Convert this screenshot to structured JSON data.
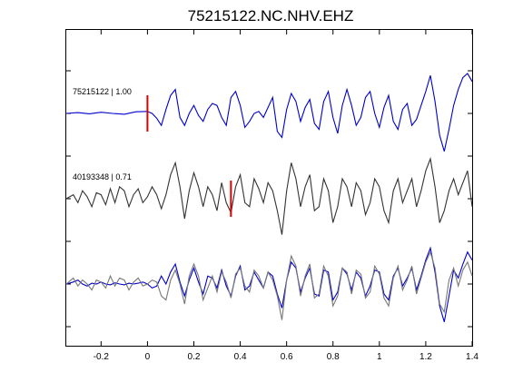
{
  "chart_data": {
    "type": "line",
    "title": "75215122.NC.NHV.EHZ",
    "xlabel": "",
    "ylabel": "",
    "xlim": [
      -0.35,
      1.4
    ],
    "xticks": [
      "-0.2",
      "0",
      "0.2",
      "0.4",
      "0.6",
      "0.8",
      "1",
      "1.2",
      "1.4"
    ],
    "xtick_values": [
      -0.2,
      0,
      0.2,
      0.4,
      0.6,
      0.8,
      1.0,
      1.2,
      1.4
    ],
    "grid": false,
    "colors": {
      "master": "#0000cc",
      "ref": "#333333",
      "overlay_ref": "#777777",
      "pick": "#dd0000"
    },
    "panels": [
      {
        "label": "75215122 | 1.00",
        "pick_time": 0.0,
        "color": "#0000cc",
        "series": [
          {
            "x": [
              -0.35,
              -0.3,
              -0.25,
              -0.2,
              -0.15,
              -0.1,
              -0.05,
              0.0,
              0.02,
              0.04,
              0.06,
              0.08,
              0.1,
              0.12,
              0.14,
              0.16,
              0.18,
              0.2,
              0.22,
              0.24,
              0.26,
              0.28,
              0.3,
              0.32,
              0.34,
              0.36,
              0.38,
              0.4,
              0.42,
              0.44,
              0.46,
              0.48,
              0.5,
              0.52,
              0.54,
              0.56,
              0.58,
              0.6,
              0.62,
              0.64,
              0.66,
              0.68,
              0.7,
              0.72,
              0.74,
              0.76,
              0.78,
              0.8,
              0.82,
              0.84,
              0.86,
              0.88,
              0.9,
              0.92,
              0.94,
              0.96,
              0.98,
              1.0,
              1.02,
              1.04,
              1.06,
              1.08,
              1.1,
              1.12,
              1.14,
              1.16,
              1.18,
              1.2,
              1.22,
              1.24,
              1.26,
              1.28,
              1.3,
              1.32,
              1.34,
              1.36,
              1.38,
              1.4
            ],
            "y": [
              0.0,
              0.02,
              -0.01,
              0.03,
              0.0,
              -0.02,
              0.04,
              0.05,
              0.0,
              -0.12,
              -0.3,
              0.1,
              0.45,
              0.6,
              -0.1,
              -0.3,
              0.0,
              0.2,
              -0.05,
              -0.2,
              0.1,
              0.25,
              0.2,
              -0.1,
              -0.3,
              0.4,
              0.55,
              0.2,
              -0.35,
              -0.2,
              0.0,
              0.05,
              -0.1,
              0.15,
              0.4,
              -0.45,
              -0.6,
              0.1,
              0.5,
              0.3,
              -0.2,
              0.15,
              0.35,
              -0.25,
              -0.4,
              0.3,
              0.55,
              -0.1,
              -0.5,
              0.2,
              0.6,
              0.2,
              -0.3,
              -0.1,
              0.4,
              0.55,
              0.0,
              -0.35,
              0.15,
              0.45,
              -0.2,
              -0.4,
              0.1,
              0.25,
              -0.3,
              -0.15,
              0.2,
              0.55,
              0.95,
              0.3,
              -0.55,
              -0.95,
              -0.4,
              0.2,
              0.6,
              0.9,
              1.0,
              0.8
            ]
          }
        ]
      },
      {
        "label": "40193348 | 0.71",
        "pick_time": 0.36,
        "color": "#333333",
        "series": [
          {
            "x": [
              -0.35,
              -0.32,
              -0.3,
              -0.28,
              -0.26,
              -0.24,
              -0.22,
              -0.2,
              -0.18,
              -0.16,
              -0.14,
              -0.12,
              -0.1,
              -0.08,
              -0.06,
              -0.04,
              -0.02,
              0.0,
              0.02,
              0.04,
              0.06,
              0.08,
              0.1,
              0.12,
              0.14,
              0.16,
              0.18,
              0.2,
              0.22,
              0.24,
              0.26,
              0.28,
              0.3,
              0.32,
              0.34,
              0.36,
              0.38,
              0.4,
              0.42,
              0.44,
              0.46,
              0.48,
              0.5,
              0.52,
              0.54,
              0.56,
              0.58,
              0.6,
              0.62,
              0.64,
              0.66,
              0.68,
              0.7,
              0.72,
              0.74,
              0.76,
              0.78,
              0.8,
              0.82,
              0.84,
              0.86,
              0.88,
              0.9,
              0.92,
              0.94,
              0.96,
              0.98,
              1.0,
              1.02,
              1.04,
              1.06,
              1.08,
              1.1,
              1.12,
              1.14,
              1.16,
              1.18,
              1.2,
              1.22,
              1.24,
              1.26,
              1.28,
              1.3,
              1.32,
              1.34,
              1.36,
              1.38,
              1.4
            ],
            "y": [
              0.0,
              0.1,
              -0.1,
              0.2,
              0.05,
              -0.2,
              0.15,
              0.1,
              -0.15,
              0.25,
              -0.1,
              0.3,
              0.2,
              -0.2,
              0.1,
              0.25,
              -0.1,
              0.05,
              0.3,
              0.1,
              -0.25,
              0.1,
              0.6,
              0.9,
              0.3,
              -0.5,
              0.2,
              0.65,
              0.3,
              -0.2,
              0.3,
              0.1,
              -0.3,
              0.4,
              -0.1,
              -0.35,
              0.3,
              0.6,
              -0.1,
              -0.2,
              0.5,
              0.25,
              -0.1,
              0.4,
              0.2,
              -0.3,
              -0.9,
              0.2,
              0.9,
              0.5,
              -0.2,
              0.3,
              0.6,
              -0.3,
              -0.2,
              0.5,
              0.2,
              -0.6,
              -0.2,
              0.5,
              0.3,
              -0.2,
              0.4,
              0.2,
              -0.4,
              -0.1,
              0.5,
              0.3,
              -0.3,
              -0.6,
              0.2,
              0.5,
              -0.1,
              0.2,
              0.5,
              -0.2,
              0.2,
              0.7,
              1.0,
              0.3,
              -0.6,
              -0.3,
              0.2,
              0.5,
              0.1,
              0.4,
              0.7,
              -0.2
            ]
          }
        ]
      },
      {
        "label": "",
        "pick_time": null,
        "color": "#0000cc",
        "overlay": true,
        "series": [
          {
            "x": [
              -0.35,
              -0.32,
              -0.3,
              -0.28,
              -0.26,
              -0.24,
              -0.22,
              -0.2,
              -0.18,
              -0.16,
              -0.14,
              -0.12,
              -0.1,
              -0.08,
              -0.06,
              -0.04,
              -0.02,
              0.0,
              0.02,
              0.04,
              0.06,
              0.08,
              0.1,
              0.12,
              0.14,
              0.16,
              0.18,
              0.2,
              0.22,
              0.24,
              0.26,
              0.28,
              0.3,
              0.32,
              0.34,
              0.36,
              0.38,
              0.4,
              0.42,
              0.44,
              0.46,
              0.48,
              0.5,
              0.52,
              0.54,
              0.56,
              0.58,
              0.6,
              0.62,
              0.64,
              0.66,
              0.68,
              0.7,
              0.72,
              0.74,
              0.76,
              0.78,
              0.8,
              0.82,
              0.84,
              0.86,
              0.88,
              0.9,
              0.92,
              0.94,
              0.96,
              0.98,
              1.0,
              1.02,
              1.04,
              1.06,
              1.08,
              1.1,
              1.12,
              1.14,
              1.16,
              1.18,
              1.2,
              1.22,
              1.24,
              1.26,
              1.28,
              1.3,
              1.32,
              1.34,
              1.36,
              1.38,
              1.4
            ],
            "y": [
              0.0,
              0.05,
              0.1,
              0.0,
              -0.05,
              0.02,
              0.0,
              0.05,
              0.0,
              -0.02,
              0.03,
              0.0,
              -0.02,
              0.02,
              0.0,
              0.02,
              0.05,
              0.0,
              -0.1,
              -0.05,
              0.2,
              0.0,
              0.3,
              0.5,
              0.05,
              -0.3,
              0.1,
              0.4,
              0.05,
              -0.25,
              0.2,
              0.15,
              -0.1,
              0.35,
              -0.05,
              -0.3,
              0.2,
              0.45,
              -0.15,
              -0.05,
              0.3,
              0.1,
              -0.1,
              0.3,
              0.2,
              -0.25,
              -0.6,
              0.1,
              0.55,
              0.4,
              -0.2,
              0.15,
              0.4,
              -0.25,
              -0.3,
              0.35,
              0.3,
              -0.4,
              -0.2,
              0.4,
              0.25,
              -0.15,
              0.3,
              0.15,
              -0.3,
              -0.05,
              0.35,
              0.3,
              -0.25,
              -0.4,
              0.2,
              0.4,
              -0.05,
              0.15,
              0.4,
              -0.15,
              0.2,
              0.6,
              0.9,
              0.3,
              -0.55,
              -0.95,
              -0.3,
              0.35,
              0.15,
              0.5,
              0.8,
              0.6
            ]
          },
          {
            "x": [
              -0.35,
              -0.32,
              -0.3,
              -0.28,
              -0.26,
              -0.24,
              -0.22,
              -0.2,
              -0.18,
              -0.16,
              -0.14,
              -0.12,
              -0.1,
              -0.08,
              -0.06,
              -0.04,
              -0.02,
              0.0,
              0.02,
              0.04,
              0.06,
              0.08,
              0.1,
              0.12,
              0.14,
              0.16,
              0.18,
              0.2,
              0.22,
              0.24,
              0.26,
              0.28,
              0.3,
              0.32,
              0.34,
              0.36,
              0.38,
              0.4,
              0.42,
              0.44,
              0.46,
              0.48,
              0.5,
              0.52,
              0.54,
              0.56,
              0.58,
              0.6,
              0.62,
              0.64,
              0.66,
              0.68,
              0.7,
              0.72,
              0.74,
              0.76,
              0.78,
              0.8,
              0.82,
              0.84,
              0.86,
              0.88,
              0.9,
              0.92,
              0.94,
              0.96,
              0.98,
              1.0,
              1.02,
              1.04,
              1.06,
              1.08,
              1.1,
              1.12,
              1.14,
              1.16,
              1.18,
              1.2,
              1.22,
              1.24,
              1.26,
              1.28,
              1.3,
              1.32,
              1.34,
              1.36,
              1.38,
              1.4
            ],
            "y": [
              0.0,
              0.15,
              -0.05,
              0.1,
              0.0,
              -0.15,
              0.1,
              0.05,
              -0.1,
              0.2,
              -0.05,
              0.15,
              0.1,
              -0.15,
              0.05,
              0.15,
              -0.05,
              0.0,
              0.1,
              0.05,
              -0.3,
              -0.4,
              0.1,
              0.35,
              0.0,
              -0.5,
              0.2,
              0.5,
              0.2,
              -0.4,
              -0.1,
              0.2,
              -0.2,
              0.3,
              0.05,
              -0.35,
              0.25,
              0.4,
              -0.05,
              -0.2,
              0.35,
              0.2,
              -0.1,
              0.3,
              0.1,
              -0.3,
              -0.9,
              0.1,
              0.7,
              0.45,
              -0.3,
              0.2,
              0.5,
              -0.35,
              -0.25,
              0.45,
              0.2,
              -0.55,
              -0.3,
              0.4,
              0.3,
              -0.25,
              0.35,
              0.25,
              -0.35,
              -0.2,
              0.45,
              0.25,
              -0.35,
              -0.55,
              0.15,
              0.45,
              -0.15,
              0.1,
              0.45,
              -0.25,
              0.15,
              0.55,
              0.8,
              0.4,
              -0.5,
              -0.7,
              0.1,
              0.4,
              -0.05,
              0.35,
              0.55,
              0.2
            ]
          }
        ]
      }
    ]
  }
}
